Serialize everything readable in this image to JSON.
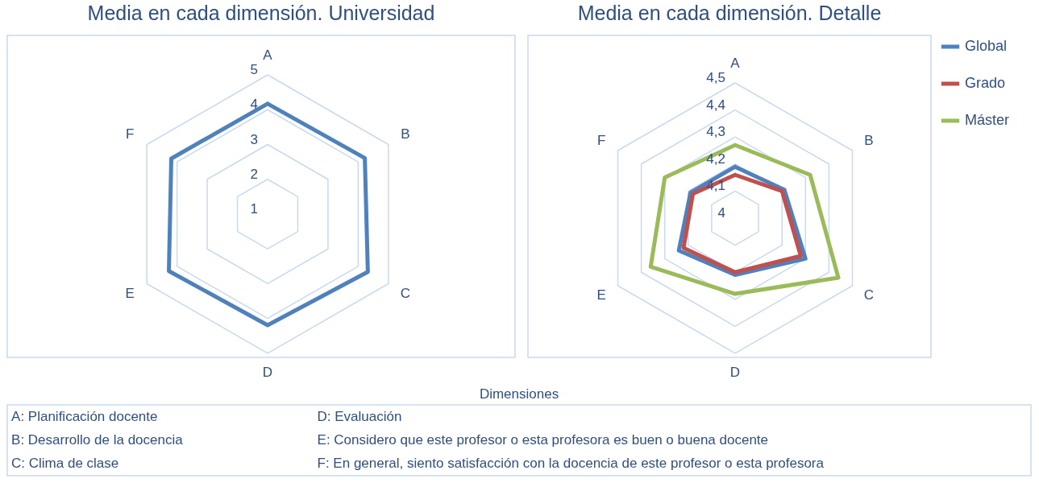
{
  "chart_data": [
    {
      "type": "radar",
      "title": "Media en cada dimensión. Universidad",
      "categories": [
        "A",
        "B",
        "C",
        "D",
        "E",
        "F"
      ],
      "series": [
        {
          "color": "#4f81bd",
          "values": [
            4.17,
            4.22,
            4.32,
            4.19,
            4.27,
            4.19
          ]
        }
      ],
      "ylim": [
        1,
        5
      ],
      "yticks": [
        1,
        2,
        3,
        4,
        5
      ],
      "grid": true
    },
    {
      "type": "radar",
      "title": "Media en cada dimensión. Detalle",
      "categories": [
        "A",
        "B",
        "C",
        "D",
        "E",
        "F"
      ],
      "series": [
        {
          "name": "Global",
          "color": "#4f81bd",
          "values": [
            4.19,
            4.21,
            4.3,
            4.21,
            4.24,
            4.19
          ]
        },
        {
          "name": "Grado",
          "color": "#c0504d",
          "values": [
            4.16,
            4.2,
            4.28,
            4.2,
            4.22,
            4.18
          ]
        },
        {
          "name": "Máster",
          "color": "#9bbb59",
          "values": [
            4.27,
            4.32,
            4.44,
            4.28,
            4.36,
            4.3
          ]
        }
      ],
      "ylim": [
        4,
        4.5
      ],
      "yticks": [
        {
          "value": 4,
          "label": "4"
        },
        {
          "value": 4.1,
          "label": "4,1"
        },
        {
          "value": 4.2,
          "label": "4,2"
        },
        {
          "value": 4.3,
          "label": "4,3"
        },
        {
          "value": 4.4,
          "label": "4,4"
        },
        {
          "value": 4.5,
          "label": "4,5"
        }
      ],
      "grid": true,
      "legend": "right"
    },
    {
      "type": "other",
      "title": "Dimensiones",
      "annotations": [
        "A: Planificación docente",
        "B: Desarrollo de la docencia",
        "C: Clima de clase",
        "D: Evaluación",
        "E: Considero que este profesor o esta profesora es buen o buena docente",
        "F: En general, siento satisfacción con la docencia de este profesor o esta profesora"
      ]
    }
  ]
}
